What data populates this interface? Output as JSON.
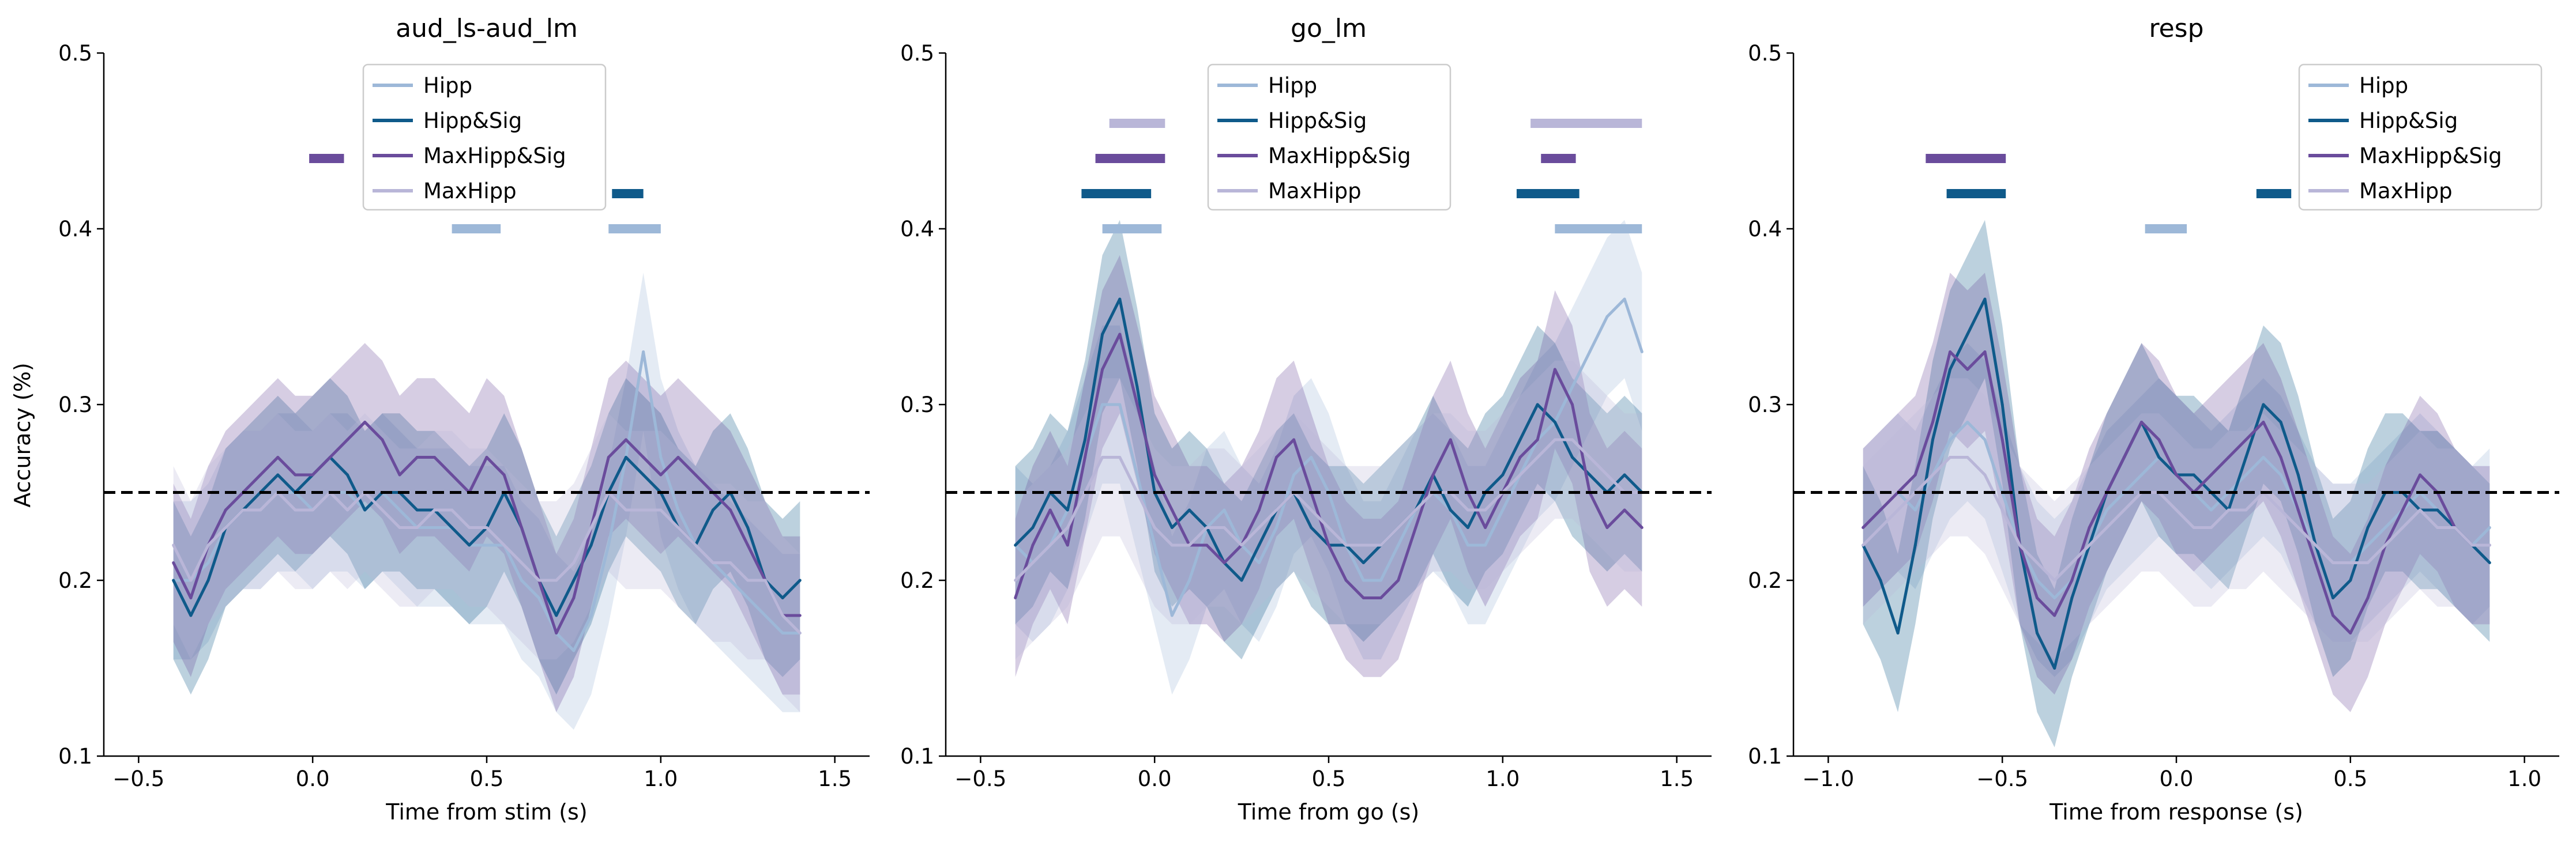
{
  "figure": {
    "ylabel": "Accuracy (%)",
    "legend_entries": [
      "Hipp",
      "Hipp&Sig",
      "MaxHipp&Sig",
      "MaxHipp"
    ],
    "series_colors": {
      "Hipp": "#9db8d8",
      "Hipp&Sig": "#0f5a8a",
      "MaxHipp&Sig": "#6a4c9c",
      "MaxHipp": "#b9b6d8"
    },
    "chance_line": {
      "y": 0.25,
      "color": "#000000",
      "style": "dashed"
    },
    "grid": false
  },
  "chart_data": [
    {
      "type": "line",
      "title": "aud_ls-aud_lm",
      "xlabel": "Time from stim (s)",
      "ylabel": "Accuracy (%)",
      "xlim": [
        -0.6,
        1.6
      ],
      "ylim": [
        0.1,
        0.5
      ],
      "xticks": [
        -0.5,
        0.0,
        0.5,
        1.0,
        1.5
      ],
      "xtick_labels": [
        "−0.5",
        "0.0",
        "0.5",
        "1.0",
        "1.5"
      ],
      "yticks": [
        0.1,
        0.2,
        0.3,
        0.4,
        0.5
      ],
      "ytick_labels": [
        "0.1",
        "0.2",
        "0.3",
        "0.4",
        "0.5"
      ],
      "legend_position": "top-center",
      "x": [
        -0.5,
        -0.4,
        -0.35,
        -0.3,
        -0.25,
        -0.2,
        -0.15,
        -0.1,
        -0.05,
        0.0,
        0.05,
        0.1,
        0.15,
        0.2,
        0.25,
        0.3,
        0.35,
        0.4,
        0.45,
        0.5,
        0.55,
        0.6,
        0.65,
        0.7,
        0.75,
        0.8,
        0.85,
        0.9,
        0.95,
        1.0,
        1.05,
        1.1,
        1.15,
        1.2,
        1.25,
        1.3,
        1.35,
        1.4,
        1.5
      ],
      "series": [
        {
          "name": "Hipp",
          "values": [
            null,
            0.2,
            0.2,
            0.21,
            0.23,
            0.24,
            0.24,
            0.25,
            0.25,
            0.24,
            0.25,
            0.25,
            0.24,
            0.25,
            0.24,
            0.23,
            0.23,
            0.23,
            0.22,
            0.22,
            0.22,
            0.2,
            0.19,
            0.17,
            0.16,
            0.18,
            0.22,
            0.27,
            0.33,
            0.27,
            0.24,
            0.22,
            0.21,
            0.2,
            0.19,
            0.18,
            0.17,
            0.17,
            null
          ]
        },
        {
          "name": "Hipp&Sig",
          "values": [
            null,
            0.2,
            0.18,
            0.2,
            0.23,
            0.24,
            0.25,
            0.26,
            0.25,
            0.26,
            0.27,
            0.26,
            0.24,
            0.25,
            0.25,
            0.24,
            0.24,
            0.23,
            0.22,
            0.23,
            0.25,
            0.23,
            0.2,
            0.18,
            0.2,
            0.22,
            0.25,
            0.27,
            0.26,
            0.25,
            0.23,
            0.22,
            0.24,
            0.25,
            0.23,
            0.2,
            0.19,
            0.2,
            null
          ]
        },
        {
          "name": "MaxHipp&Sig",
          "values": [
            null,
            0.21,
            0.19,
            0.22,
            0.24,
            0.25,
            0.26,
            0.27,
            0.26,
            0.26,
            0.27,
            0.28,
            0.29,
            0.28,
            0.26,
            0.27,
            0.27,
            0.26,
            0.25,
            0.27,
            0.26,
            0.23,
            0.2,
            0.17,
            0.19,
            0.23,
            0.27,
            0.28,
            0.27,
            0.26,
            0.27,
            0.26,
            0.25,
            0.24,
            0.22,
            0.2,
            0.18,
            0.18,
            null
          ]
        },
        {
          "name": "MaxHipp",
          "values": [
            null,
            0.22,
            0.2,
            0.22,
            0.23,
            0.24,
            0.24,
            0.25,
            0.24,
            0.24,
            0.25,
            0.24,
            0.25,
            0.24,
            0.23,
            0.23,
            0.24,
            0.24,
            0.23,
            0.23,
            0.22,
            0.21,
            0.2,
            0.2,
            0.21,
            0.23,
            0.25,
            0.24,
            0.24,
            0.24,
            0.23,
            0.22,
            0.21,
            0.21,
            0.2,
            0.2,
            0.18,
            0.17,
            null
          ]
        }
      ],
      "significance_bars": [
        {
          "series": "MaxHipp&Sig",
          "x": [
            -0.01,
            0.09
          ],
          "y": 0.44
        },
        {
          "series": "Hipp&Sig",
          "x": [
            0.86,
            0.95
          ],
          "y": 0.42
        },
        {
          "series": "Hipp",
          "x": [
            0.4,
            0.54
          ],
          "y": 0.4
        },
        {
          "series": "Hipp",
          "x": [
            0.85,
            1.0
          ],
          "y": 0.4
        }
      ]
    },
    {
      "type": "line",
      "title": "go_lm",
      "xlabel": "Time from go (s)",
      "ylabel": "",
      "xlim": [
        -0.6,
        1.6
      ],
      "ylim": [
        0.1,
        0.5
      ],
      "xticks": [
        -0.5,
        0.0,
        0.5,
        1.0,
        1.5
      ],
      "xtick_labels": [
        "−0.5",
        "0.0",
        "0.5",
        "1.0",
        "1.5"
      ],
      "yticks": [
        0.1,
        0.2,
        0.3,
        0.4,
        0.5
      ],
      "ytick_labels": [
        "0.1",
        "0.2",
        "0.3",
        "0.4",
        "0.5"
      ],
      "legend_position": "top-center",
      "x": [
        -0.5,
        -0.4,
        -0.35,
        -0.3,
        -0.25,
        -0.2,
        -0.15,
        -0.1,
        -0.05,
        0.0,
        0.05,
        0.1,
        0.15,
        0.2,
        0.25,
        0.3,
        0.35,
        0.4,
        0.45,
        0.5,
        0.55,
        0.6,
        0.65,
        0.7,
        0.75,
        0.8,
        0.85,
        0.9,
        0.95,
        1.0,
        1.05,
        1.1,
        1.15,
        1.2,
        1.25,
        1.3,
        1.35,
        1.4,
        1.5
      ],
      "series": [
        {
          "name": "Hipp",
          "values": [
            null,
            0.22,
            0.21,
            0.22,
            0.24,
            0.27,
            0.3,
            0.3,
            0.26,
            0.22,
            0.18,
            0.2,
            0.23,
            0.24,
            0.22,
            0.21,
            0.23,
            0.26,
            0.27,
            0.25,
            0.22,
            0.2,
            0.2,
            0.22,
            0.24,
            0.25,
            0.24,
            0.22,
            0.22,
            0.24,
            0.26,
            0.28,
            0.29,
            0.31,
            0.33,
            0.35,
            0.36,
            0.33,
            null
          ]
        },
        {
          "name": "Hipp&Sig",
          "values": [
            null,
            0.22,
            0.23,
            0.25,
            0.24,
            0.28,
            0.34,
            0.36,
            0.31,
            0.25,
            0.23,
            0.24,
            0.23,
            0.21,
            0.2,
            0.22,
            0.24,
            0.25,
            0.23,
            0.22,
            0.22,
            0.21,
            0.22,
            0.23,
            0.24,
            0.26,
            0.24,
            0.23,
            0.25,
            0.26,
            0.28,
            0.3,
            0.29,
            0.27,
            0.26,
            0.25,
            0.26,
            0.25,
            null
          ]
        },
        {
          "name": "MaxHipp&Sig",
          "values": [
            null,
            0.19,
            0.22,
            0.24,
            0.22,
            0.27,
            0.32,
            0.34,
            0.3,
            0.26,
            0.24,
            0.22,
            0.22,
            0.21,
            0.22,
            0.24,
            0.27,
            0.28,
            0.25,
            0.22,
            0.2,
            0.19,
            0.19,
            0.2,
            0.23,
            0.26,
            0.28,
            0.25,
            0.23,
            0.25,
            0.27,
            0.28,
            0.32,
            0.3,
            0.25,
            0.23,
            0.24,
            0.23,
            null
          ]
        },
        {
          "name": "MaxHipp",
          "values": [
            null,
            0.2,
            0.21,
            0.22,
            0.23,
            0.25,
            0.27,
            0.27,
            0.25,
            0.23,
            0.22,
            0.22,
            0.23,
            0.23,
            0.22,
            0.23,
            0.24,
            0.25,
            0.24,
            0.23,
            0.22,
            0.22,
            0.22,
            0.23,
            0.24,
            0.25,
            0.25,
            0.24,
            0.24,
            0.25,
            0.26,
            0.27,
            0.28,
            0.28,
            0.27,
            0.26,
            0.25,
            0.25,
            null
          ]
        }
      ],
      "significance_bars": [
        {
          "series": "MaxHipp",
          "x": [
            -0.13,
            0.03
          ],
          "y": 0.46
        },
        {
          "series": "MaxHipp",
          "x": [
            1.08,
            1.4
          ],
          "y": 0.46
        },
        {
          "series": "MaxHipp&Sig",
          "x": [
            -0.17,
            0.03
          ],
          "y": 0.44
        },
        {
          "series": "MaxHipp&Sig",
          "x": [
            1.11,
            1.21
          ],
          "y": 0.44
        },
        {
          "series": "Hipp&Sig",
          "x": [
            -0.21,
            -0.01
          ],
          "y": 0.42
        },
        {
          "series": "Hipp&Sig",
          "x": [
            1.04,
            1.22
          ],
          "y": 0.42
        },
        {
          "series": "Hipp",
          "x": [
            -0.15,
            0.02
          ],
          "y": 0.4
        },
        {
          "series": "Hipp",
          "x": [
            1.15,
            1.4
          ],
          "y": 0.4
        }
      ]
    },
    {
      "type": "line",
      "title": "resp",
      "xlabel": "Time from response (s)",
      "ylabel": "",
      "xlim": [
        -1.1,
        1.1
      ],
      "ylim": [
        0.1,
        0.5
      ],
      "xticks": [
        -1.0,
        -0.5,
        0.0,
        0.5,
        1.0
      ],
      "xtick_labels": [
        "−1.0",
        "−0.5",
        "0.0",
        "0.5",
        "1.0"
      ],
      "yticks": [
        0.1,
        0.2,
        0.3,
        0.4,
        0.5
      ],
      "ytick_labels": [
        "0.1",
        "0.2",
        "0.3",
        "0.4",
        "0.5"
      ],
      "legend_position": "top-right",
      "x": [
        -1.0,
        -0.9,
        -0.85,
        -0.8,
        -0.75,
        -0.7,
        -0.65,
        -0.6,
        -0.55,
        -0.5,
        -0.45,
        -0.4,
        -0.35,
        -0.3,
        -0.25,
        -0.2,
        -0.15,
        -0.1,
        -0.05,
        0.0,
        0.05,
        0.1,
        0.15,
        0.2,
        0.25,
        0.3,
        0.35,
        0.4,
        0.45,
        0.5,
        0.55,
        0.6,
        0.65,
        0.7,
        0.75,
        0.8,
        0.85,
        0.9,
        1.0
      ],
      "series": [
        {
          "name": "Hipp",
          "values": [
            null,
            0.23,
            0.24,
            0.25,
            0.24,
            0.26,
            0.28,
            0.29,
            0.28,
            0.25,
            0.22,
            0.2,
            0.19,
            0.2,
            0.22,
            0.24,
            0.25,
            0.26,
            0.27,
            0.26,
            0.25,
            0.24,
            0.25,
            0.26,
            0.27,
            0.26,
            0.24,
            0.22,
            0.21,
            0.21,
            0.22,
            0.23,
            0.24,
            0.25,
            0.24,
            0.23,
            0.22,
            0.23,
            null
          ]
        },
        {
          "name": "Hipp&Sig",
          "values": [
            null,
            0.22,
            0.2,
            0.17,
            0.22,
            0.28,
            0.32,
            0.34,
            0.36,
            0.3,
            0.22,
            0.17,
            0.15,
            0.19,
            0.22,
            0.25,
            0.27,
            0.29,
            0.27,
            0.26,
            0.26,
            0.25,
            0.24,
            0.27,
            0.3,
            0.29,
            0.26,
            0.22,
            0.19,
            0.2,
            0.23,
            0.25,
            0.25,
            0.24,
            0.24,
            0.23,
            0.22,
            0.21,
            null
          ]
        },
        {
          "name": "MaxHipp&Sig",
          "values": [
            null,
            0.23,
            0.24,
            0.25,
            0.26,
            0.29,
            0.33,
            0.32,
            0.33,
            0.28,
            0.22,
            0.19,
            0.18,
            0.2,
            0.23,
            0.25,
            0.27,
            0.29,
            0.28,
            0.26,
            0.25,
            0.26,
            0.27,
            0.28,
            0.29,
            0.27,
            0.24,
            0.21,
            0.18,
            0.17,
            0.19,
            0.22,
            0.24,
            0.26,
            0.25,
            0.23,
            0.22,
            0.22,
            null
          ]
        },
        {
          "name": "MaxHipp",
          "values": [
            null,
            0.22,
            0.23,
            0.24,
            0.25,
            0.26,
            0.27,
            0.27,
            0.26,
            0.24,
            0.22,
            0.21,
            0.2,
            0.21,
            0.22,
            0.23,
            0.24,
            0.25,
            0.25,
            0.24,
            0.23,
            0.23,
            0.24,
            0.24,
            0.25,
            0.24,
            0.23,
            0.22,
            0.21,
            0.21,
            0.21,
            0.22,
            0.23,
            0.24,
            0.23,
            0.23,
            0.22,
            0.22,
            null
          ]
        }
      ],
      "significance_bars": [
        {
          "series": "MaxHipp&Sig",
          "x": [
            -0.72,
            -0.49
          ],
          "y": 0.44
        },
        {
          "series": "Hipp&Sig",
          "x": [
            -0.66,
            -0.49
          ],
          "y": 0.42
        },
        {
          "series": "Hipp&Sig",
          "x": [
            0.23,
            0.33
          ],
          "y": 0.42
        },
        {
          "series": "Hipp",
          "x": [
            -0.09,
            0.03
          ],
          "y": 0.4
        }
      ]
    }
  ]
}
